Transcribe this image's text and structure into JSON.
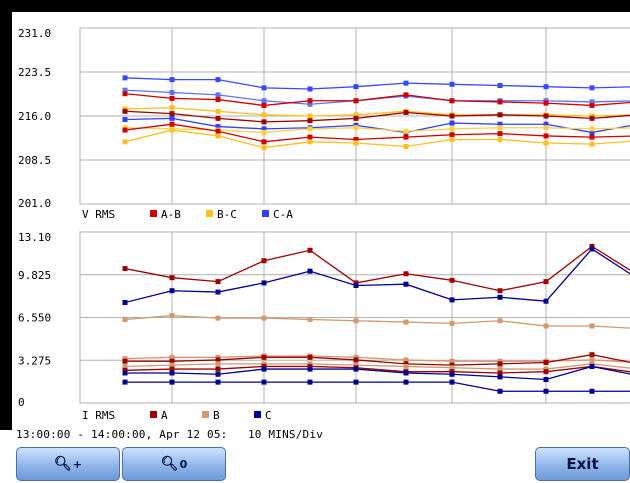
{
  "chart_data": [
    {
      "type": "line",
      "panel": "voltage",
      "yticks": [
        "231.0",
        "223.5",
        "216.0",
        "208.5",
        "201.0"
      ],
      "ylim": [
        201.0,
        231.0
      ],
      "x": [
        0,
        1,
        2,
        3,
        4,
        5,
        6,
        7,
        8,
        9,
        10,
        11,
        12
      ],
      "legend_title": "V RMS",
      "legend": [
        {
          "name": "A-B",
          "color": "#d00000"
        },
        {
          "name": "B-C",
          "color": "#ffc020"
        },
        {
          "name": "C-A",
          "color": "#3040ff"
        }
      ],
      "series": [
        {
          "color": "#3848ff",
          "values": [
            222.5,
            222.2,
            222.2,
            220.8,
            220.6,
            221.0,
            221.6,
            221.4,
            221.2,
            221.0,
            220.8,
            221.0,
            221.6
          ]
        },
        {
          "color": "#6070ff",
          "values": [
            220.4,
            220.0,
            219.6,
            218.6,
            218.0,
            218.6,
            219.4,
            218.6,
            218.6,
            218.6,
            218.4,
            218.6,
            219.0
          ]
        },
        {
          "color": "#d00000",
          "values": [
            219.8,
            219.0,
            218.8,
            217.8,
            218.6,
            218.6,
            219.6,
            218.6,
            218.4,
            218.2,
            217.8,
            218.4,
            218.8
          ]
        },
        {
          "color": "#ffc020",
          "values": [
            217.2,
            217.4,
            216.8,
            216.2,
            216.0,
            216.2,
            216.8,
            216.2,
            216.2,
            216.2,
            216.0,
            216.2,
            216.6
          ]
        },
        {
          "color": "#a00000",
          "values": [
            216.8,
            216.4,
            215.6,
            215.0,
            215.2,
            215.6,
            216.6,
            216.0,
            216.2,
            216.0,
            215.6,
            216.2,
            216.4
          ]
        },
        {
          "color": "#3040ff",
          "values": [
            215.4,
            215.6,
            214.2,
            213.8,
            214.0,
            214.4,
            213.2,
            214.8,
            214.6,
            214.6,
            213.2,
            214.6,
            215.2
          ]
        },
        {
          "color": "#ffd040",
          "values": [
            214.0,
            213.8,
            213.6,
            213.2,
            213.8,
            214.0,
            213.4,
            213.8,
            214.0,
            214.0,
            213.8,
            214.0,
            214.4
          ]
        },
        {
          "color": "#d00000",
          "values": [
            213.6,
            214.6,
            213.4,
            211.6,
            212.4,
            212.0,
            212.4,
            212.8,
            213.0,
            212.6,
            212.4,
            212.6,
            213.2
          ]
        },
        {
          "color": "#ffc020",
          "values": [
            211.6,
            213.6,
            212.6,
            210.6,
            211.6,
            211.4,
            210.8,
            212.0,
            212.0,
            211.4,
            211.2,
            211.8,
            212.2
          ]
        }
      ]
    },
    {
      "type": "line",
      "panel": "current",
      "yticks": [
        "13.10",
        "9.825",
        "6.550",
        "3.275",
        "0"
      ],
      "ylim": [
        0,
        13.1
      ],
      "x": [
        0,
        1,
        2,
        3,
        4,
        5,
        6,
        7,
        8,
        9,
        10,
        11,
        12
      ],
      "legend_title": "I RMS",
      "legend": [
        {
          "name": "A",
          "color": "#a00000"
        },
        {
          "name": "B",
          "color": "#d09a70"
        },
        {
          "name": "C",
          "color": "#000090"
        }
      ],
      "series": [
        {
          "color": "#a00000",
          "values": [
            10.3,
            9.6,
            9.3,
            10.9,
            11.7,
            9.2,
            9.9,
            9.4,
            8.6,
            9.3,
            12.0,
            9.8,
            9.9
          ]
        },
        {
          "color": "#000090",
          "values": [
            7.7,
            8.6,
            8.5,
            9.2,
            10.1,
            9.0,
            9.1,
            7.9,
            8.1,
            7.8,
            11.8,
            9.5,
            9.6
          ]
        },
        {
          "color": "#d09a70",
          "values": [
            6.4,
            6.7,
            6.5,
            6.5,
            6.4,
            6.3,
            6.2,
            6.1,
            6.3,
            5.9,
            5.9,
            5.7,
            5.8
          ]
        },
        {
          "color": "#d09a70",
          "values": [
            3.4,
            3.5,
            3.5,
            3.6,
            3.6,
            3.5,
            3.3,
            3.2,
            3.2,
            3.2,
            3.3,
            3.1,
            3.2
          ]
        },
        {
          "color": "#a00000",
          "values": [
            3.2,
            3.2,
            3.3,
            3.5,
            3.5,
            3.3,
            3.0,
            2.9,
            3.0,
            3.1,
            3.7,
            3.0,
            3.1
          ]
        },
        {
          "color": "#d09a70",
          "values": [
            2.8,
            2.9,
            3.0,
            3.0,
            3.0,
            2.9,
            2.8,
            2.7,
            2.6,
            2.6,
            3.0,
            2.6,
            2.8
          ]
        },
        {
          "color": "#a00000",
          "values": [
            2.5,
            2.6,
            2.6,
            2.8,
            2.8,
            2.7,
            2.4,
            2.4,
            2.3,
            2.4,
            2.8,
            2.3,
            2.5
          ]
        },
        {
          "color": "#000090",
          "values": [
            2.3,
            2.3,
            2.2,
            2.6,
            2.6,
            2.6,
            2.3,
            2.2,
            2.0,
            1.8,
            2.8,
            2.1,
            2.2
          ]
        },
        {
          "color": "#000090",
          "values": [
            1.6,
            1.6,
            1.6,
            1.6,
            1.6,
            1.6,
            1.6,
            1.6,
            0.9,
            0.9,
            0.9,
            0.9,
            0.9
          ]
        }
      ]
    }
  ],
  "footer": {
    "time_range": "13:00:00 - 14:00:00, Apr 12 05:",
    "division": "10 MINS/Div"
  },
  "buttons": {
    "zoom_in_icon": "zoom-in-icon",
    "zoom_out_icon": "zoom-out-icon",
    "exit_label": "Exit"
  }
}
